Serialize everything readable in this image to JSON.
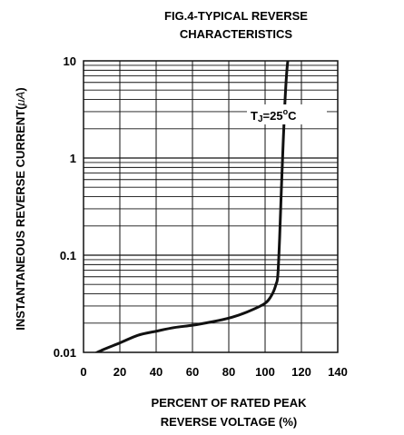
{
  "chart_data": {
    "type": "line",
    "title_lines": [
      "FIG.4-TYPICAL REVERSE",
      "CHARACTERISTICS"
    ],
    "xlabel_lines": [
      "PERCENT OF RATED PEAK",
      "REVERSE VOLTAGE (%)"
    ],
    "ylabel_main": "INSTANTANEOUS REVERSE CURRENT(",
    "ylabel_unit": "μA",
    "ylabel_close": ")",
    "xlim": [
      0,
      140
    ],
    "ylim": [
      0.01,
      10
    ],
    "yscale": "log",
    "x_ticks": [
      "0",
      "20",
      "40",
      "60",
      "80",
      "100",
      "120",
      "140"
    ],
    "x_tick_values": [
      0,
      20,
      40,
      60,
      80,
      100,
      120,
      140
    ],
    "y_ticks": [
      "0.01",
      "0.1",
      "1",
      "10"
    ],
    "y_tick_values": [
      0.01,
      0.1,
      1,
      10
    ],
    "grid": true,
    "annotation": {
      "text_main": "T",
      "text_sub": "J",
      "text_rest": "=25",
      "degree": "o",
      "unit": "C"
    },
    "series": [
      {
        "x": [
          0,
          10,
          20,
          30,
          40,
          50,
          60,
          70,
          80,
          90,
          100,
          104,
          106,
          107,
          108,
          109,
          110,
          111,
          112,
          113
        ],
        "y": [
          0.0085,
          0.0105,
          0.0125,
          0.015,
          0.0165,
          0.018,
          0.019,
          0.0205,
          0.0225,
          0.026,
          0.032,
          0.04,
          0.05,
          0.062,
          0.15,
          0.5,
          1.5,
          4,
          8,
          12
        ]
      }
    ],
    "colors": {
      "line": "#111111",
      "grid": "#111111",
      "background": "#ffffff"
    }
  }
}
